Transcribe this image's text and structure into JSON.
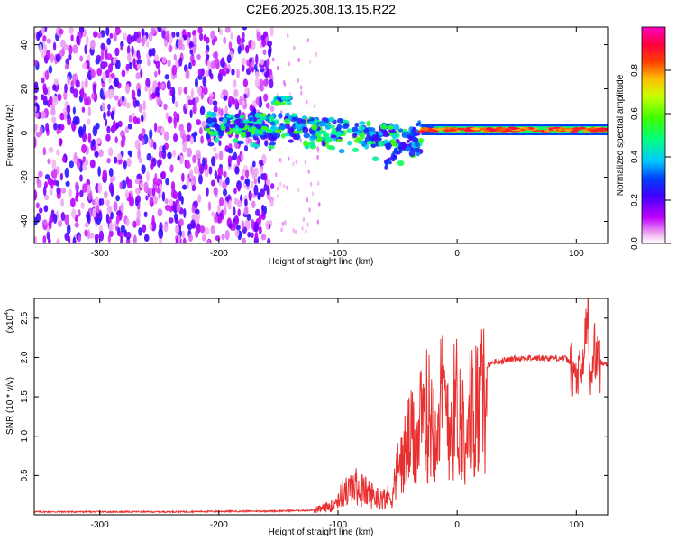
{
  "chart_data": [
    {
      "type": "heatmap",
      "title": "C2E6.2025.308.13.15.R22",
      "xlabel": "Height of straight line (km)",
      "ylabel": "Frequency (Hz)",
      "xlim": [
        -355,
        127
      ],
      "ylim": [
        -50,
        48
      ],
      "xticks": [
        -300,
        -200,
        -100,
        0,
        100
      ],
      "yticks": [
        -40,
        -20,
        0,
        20,
        40
      ],
      "colorbar": {
        "label": "Normalized spectral amplitude",
        "range": [
          0.0,
          1.0
        ],
        "ticks": [
          0.0,
          0.2,
          0.4,
          0.6,
          0.8
        ],
        "tick_labels": [
          "0.0",
          "0.2",
          "0.4",
          "0.6",
          "0.8"
        ],
        "colors": [
          "#ffffff",
          "#ff00ff",
          "#8000ff",
          "#0000ff",
          "#00c8ff",
          "#00ff80",
          "#40ff00",
          "#ffff00",
          "#ff8000",
          "#ff0000",
          "#ff00a0"
        ]
      },
      "regions": [
        {
          "name": "noise",
          "x": [
            -355,
            -155
          ],
          "y": [
            -50,
            48
          ],
          "amplitude": 0.15
        },
        {
          "name": "upper-branch",
          "x": [
            -155,
            -140
          ],
          "y": [
            13,
            16
          ],
          "amplitude": 0.5
        },
        {
          "name": "dispersed-branch",
          "x": [
            -210,
            -30
          ],
          "y": [
            -10,
            8
          ],
          "amplitude": 0.45
        },
        {
          "name": "steady-line",
          "x": [
            -30,
            127
          ],
          "y": [
            0,
            3
          ],
          "amplitude": 0.9
        }
      ]
    },
    {
      "type": "line",
      "xlabel": "Height of straight line (km)",
      "ylabel": "SNR (10 * v/v)",
      "y_multiplier": "(x10",
      "y_multiplier_exp": "4",
      "y_multiplier_close": ")",
      "xlim": [
        -355,
        127
      ],
      "ylim": [
        0.0,
        2.75
      ],
      "xticks": [
        -300,
        -200,
        -100,
        0,
        100
      ],
      "yticks": [
        0.5,
        1.0,
        1.5,
        2.0,
        2.5
      ],
      "ytick_labels": [
        "0.5",
        "1.0",
        "1.5",
        "2.0",
        "2.5"
      ],
      "color": "#e83030",
      "series": [
        {
          "name": "SNR",
          "x": [
            -355,
            -250,
            -150,
            -120,
            -105,
            -95,
            -85,
            -75,
            -65,
            -55,
            -50,
            -45,
            -40,
            -35,
            -30,
            -25,
            -20,
            -15,
            -10,
            -5,
            0,
            5,
            10,
            15,
            20,
            25,
            30,
            40,
            50,
            60,
            70,
            80,
            90,
            95,
            100,
            105,
            108,
            110,
            112,
            115,
            120,
            127
          ],
          "y": [
            0.04,
            0.04,
            0.05,
            0.06,
            0.15,
            0.35,
            0.45,
            0.35,
            0.25,
            0.3,
            0.7,
            0.9,
            1.2,
            1.1,
            1.4,
            1.6,
            1.5,
            1.7,
            1.8,
            1.5,
            1.8,
            1.4,
            1.6,
            1.7,
            1.75,
            1.9,
            1.95,
            1.97,
            2.0,
            2.0,
            2.0,
            2.0,
            2.0,
            1.95,
            1.8,
            1.9,
            2.4,
            2.7,
            1.6,
            2.2,
            1.95,
            1.93
          ]
        }
      ]
    }
  ]
}
